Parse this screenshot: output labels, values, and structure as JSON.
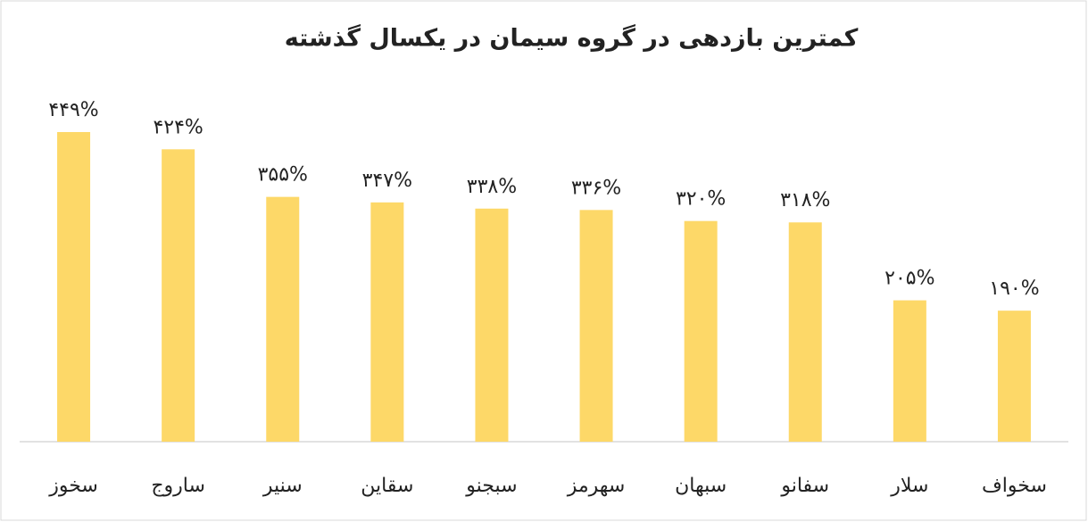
{
  "chart_data": {
    "type": "bar",
    "title": "کمترین بازدهی در گروه سیمان در یکسال گذشته",
    "categories": [
      "سخوز",
      "ساروج",
      "سنیر",
      "سقاین",
      "سبجنو",
      "سهرمز",
      "سبهان",
      "سفانو",
      "سلار",
      "سخواف"
    ],
    "values": [
      449,
      424,
      355,
      347,
      338,
      336,
      320,
      318,
      205,
      190
    ],
    "value_labels": [
      "۴۴۹%",
      "۴۲۴%",
      "۳۵۵%",
      "۳۴۷%",
      "۳۳۸%",
      "۳۳۶%",
      "۳۲۰%",
      "۳۱۸%",
      "۲۰۵%",
      "۱۹۰%"
    ],
    "color": "#fdd868"
  }
}
